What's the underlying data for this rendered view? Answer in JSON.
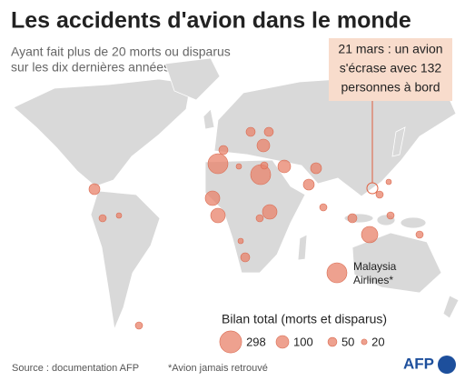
{
  "header": {
    "title": "Les accidents d'avion dans le monde",
    "subtitle": [
      "Ayant fait plus de 20 morts ou disparus",
      "sur les dix dernières années"
    ]
  },
  "annotation": [
    "21 mars : un avion",
    "s'écrase avec 132",
    "personnes à bord"
  ],
  "malaysia_label": [
    "Malaysia",
    "Airlines*"
  ],
  "legend": {
    "title": "Bilan total (morts et disparus)",
    "values": [
      298,
      100,
      50,
      20
    ]
  },
  "footer": {
    "source": "Source : documentation AFP",
    "note": "*Avion jamais retrouvé",
    "logo": "AFP"
  }
}
